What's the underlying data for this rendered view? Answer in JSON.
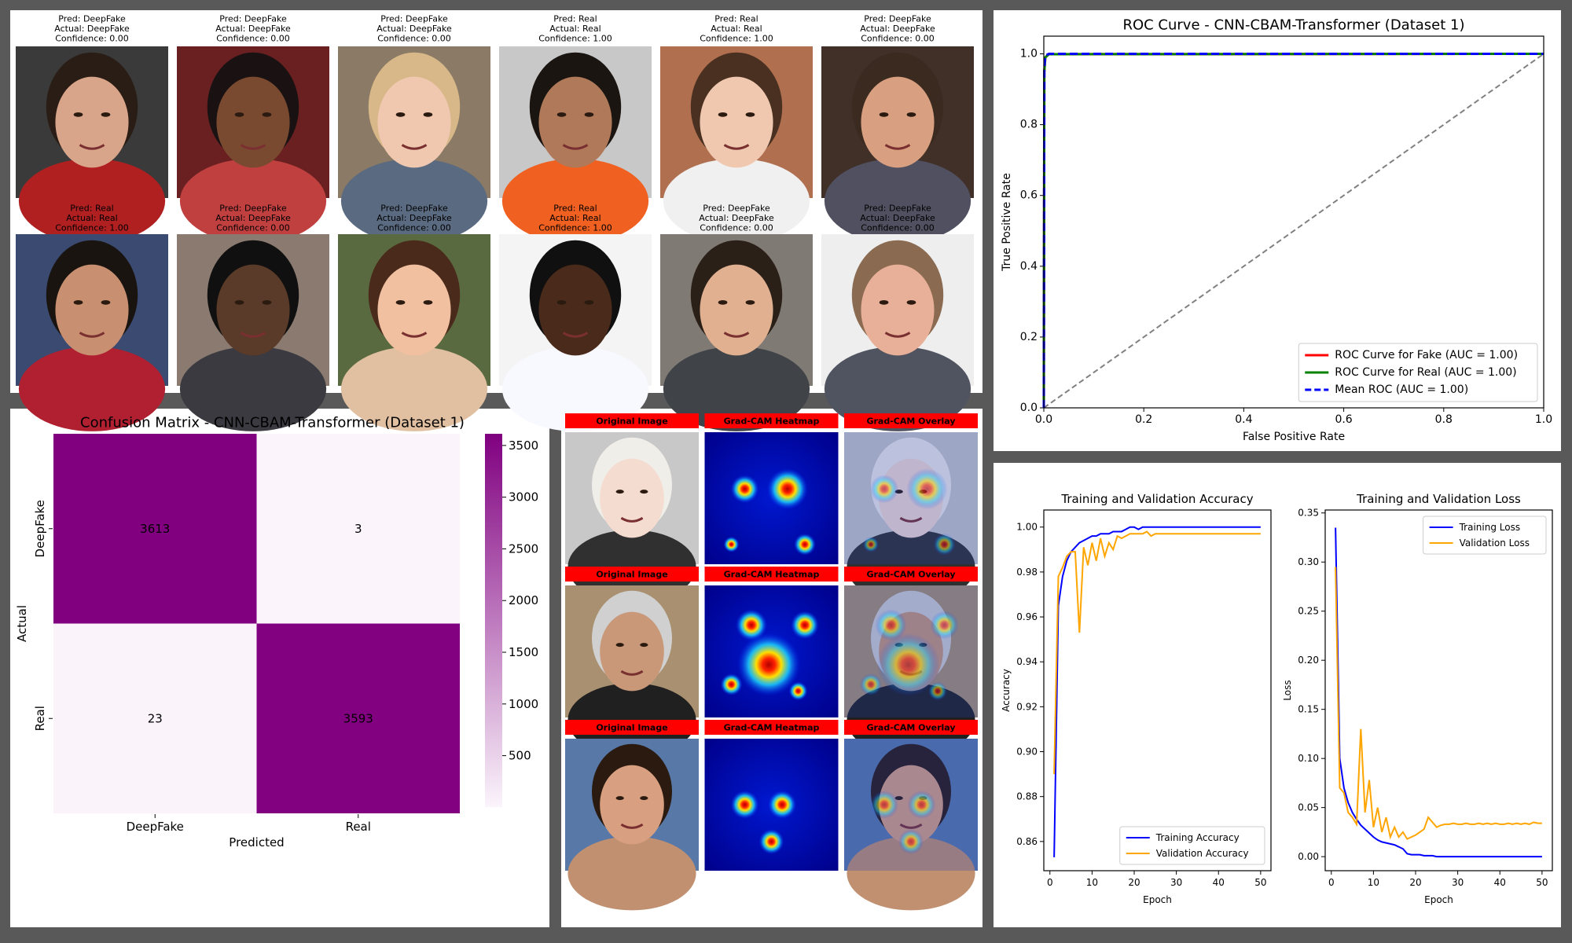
{
  "face_grid": {
    "items": [
      {
        "pred": "Pred: DeepFake",
        "actual": "Actual: DeepFake",
        "confidence": "Confidence: 0.00"
      },
      {
        "pred": "Pred: DeepFake",
        "actual": "Actual: DeepFake",
        "confidence": "Confidence: 0.00"
      },
      {
        "pred": "Pred: DeepFake",
        "actual": "Actual: DeepFake",
        "confidence": "Confidence: 0.00"
      },
      {
        "pred": "Pred: Real",
        "actual": "Actual: Real",
        "confidence": "Confidence: 1.00"
      },
      {
        "pred": "Pred: Real",
        "actual": "Actual: Real",
        "confidence": "Confidence: 1.00"
      },
      {
        "pred": "Pred: DeepFake",
        "actual": "Actual: DeepFake",
        "confidence": "Confidence: 0.00"
      },
      {
        "pred": "Pred: Real",
        "actual": "Actual: Real",
        "confidence": "Confidence: 1.00"
      },
      {
        "pred": "Pred: DeepFake",
        "actual": "Actual: DeepFake",
        "confidence": "Confidence: 0.00"
      },
      {
        "pred": "Pred: DeepFake",
        "actual": "Actual: DeepFake",
        "confidence": "Confidence: 0.00"
      },
      {
        "pred": "Pred: Real",
        "actual": "Actual: Real",
        "confidence": "Confidence: 1.00"
      },
      {
        "pred": "Pred: DeepFake",
        "actual": "Actual: DeepFake",
        "confidence": "Confidence: 0.00"
      },
      {
        "pred": "Pred: DeepFake",
        "actual": "Actual: DeepFake",
        "confidence": "Confidence: 0.00"
      }
    ]
  },
  "gradcam": {
    "rows": [
      {
        "labels": [
          "Original Image",
          "Grad-CAM Heatmap",
          "Grad-CAM Overlay"
        ]
      },
      {
        "labels": [
          "Original Image",
          "Grad-CAM Heatmap",
          "Grad-CAM Overlay"
        ]
      },
      {
        "labels": [
          "Original Image",
          "Grad-CAM Heatmap",
          "Grad-CAM Overlay"
        ]
      }
    ]
  },
  "chart_data": [
    {
      "type": "line",
      "title": "ROC Curve - CNN-CBAM-Transformer (Dataset 1)",
      "xlabel": "False Positive Rate",
      "ylabel": "True Positive Rate",
      "x": [
        0,
        0.001,
        0.003,
        0.01,
        1
      ],
      "series": [
        {
          "name": "ROC Curve for Fake (AUC = 1.00)",
          "color": "#ff0000",
          "values": [
            0,
            0.95,
            0.99,
            0.999,
            1
          ]
        },
        {
          "name": "ROC Curve for Real (AUC = 1.00)",
          "color": "#008000",
          "values": [
            0,
            0.95,
            0.99,
            0.999,
            1
          ]
        },
        {
          "name": "Mean ROC (AUC = 1.00)",
          "color": "#0000ff",
          "dash": true,
          "values": [
            0,
            0.96,
            0.995,
            1,
            1
          ]
        }
      ],
      "xlim": [
        0,
        1
      ],
      "ylim": [
        0,
        1.05
      ],
      "xticks": [
        {
          "value": 0,
          "label": "0.0"
        },
        0.2,
        0.4,
        0.6,
        0.8,
        {
          "value": 1,
          "label": "1.0"
        }
      ],
      "yticks": [
        {
          "value": 0,
          "label": "0.0"
        },
        0.2,
        0.4,
        0.6,
        0.8,
        {
          "value": 1,
          "label": "1.0"
        }
      ],
      "diagonal": true,
      "legend": "lower right"
    },
    {
      "type": "heatmap",
      "title": "Confusion Matrix - CNN-CBAM-Transformer (Dataset 1)",
      "xlabel": "Predicted",
      "ylabel": "Actual",
      "x_categories": [
        "DeepFake",
        "Real"
      ],
      "y_categories": [
        "DeepFake",
        "Real"
      ],
      "values": [
        [
          3613,
          3
        ],
        [
          23,
          3593
        ]
      ],
      "clim": [
        3,
        3613
      ],
      "cticks": [
        500,
        1000,
        1500,
        2000,
        2500,
        3000,
        3500
      ],
      "cmap": [
        "#fbf4fb",
        "#800080"
      ]
    },
    {
      "type": "line",
      "title": "Training and Validation Accuracy",
      "xlabel": "Epoch",
      "ylabel": "Accuracy",
      "x": [
        1,
        2,
        3,
        4,
        5,
        6,
        7,
        8,
        9,
        10,
        11,
        12,
        13,
        14,
        15,
        16,
        17,
        18,
        19,
        20,
        21,
        22,
        23,
        24,
        25,
        26,
        27,
        28,
        29,
        30,
        31,
        32,
        33,
        34,
        35,
        36,
        37,
        38,
        39,
        40,
        41,
        42,
        43,
        44,
        45,
        46,
        47,
        48,
        49,
        50
      ],
      "series": [
        {
          "name": "Training Accuracy",
          "color": "#0000ff",
          "values": [
            0.853,
            0.965,
            0.978,
            0.985,
            0.989,
            0.991,
            0.993,
            0.994,
            0.995,
            0.996,
            0.996,
            0.997,
            0.997,
            0.997,
            0.998,
            0.998,
            0.998,
            0.999,
            1,
            1,
            0.999,
            1,
            1,
            1,
            1,
            1,
            1,
            1,
            1,
            1,
            1,
            1,
            1,
            1,
            1,
            1,
            1,
            1,
            1,
            1,
            1,
            1,
            1,
            1,
            1,
            1,
            1,
            1,
            1,
            1
          ]
        },
        {
          "name": "Validation Accuracy",
          "color": "#ffa500",
          "values": [
            0.89,
            0.978,
            0.982,
            0.987,
            0.989,
            0.989,
            0.953,
            0.991,
            0.983,
            0.993,
            0.985,
            0.995,
            0.987,
            0.993,
            0.99,
            0.996,
            0.995,
            0.996,
            0.997,
            0.997,
            0.997,
            0.997,
            0.998,
            0.996,
            0.997,
            0.997,
            0.997,
            0.997,
            0.997,
            0.997,
            0.997,
            0.997,
            0.997,
            0.997,
            0.997,
            0.997,
            0.997,
            0.997,
            0.997,
            0.997,
            0.997,
            0.997,
            0.997,
            0.997,
            0.997,
            0.997,
            0.997,
            0.997,
            0.997,
            0.997
          ]
        }
      ],
      "xlim": [
        -1.45,
        52.45
      ],
      "ylim": [
        0.847,
        1.0076
      ],
      "xticks": [
        0,
        10,
        20,
        30,
        40,
        50
      ],
      "yticks": [
        0.86,
        0.88,
        {
          "value": 0.9,
          "label": "0.90"
        },
        0.92,
        0.94,
        0.96,
        0.98,
        {
          "value": 1,
          "label": "1.00"
        }
      ],
      "legend": "lower right"
    },
    {
      "type": "line",
      "title": "Training and Validation Loss",
      "xlabel": "Epoch",
      "ylabel": "Loss",
      "x": [
        1,
        2,
        3,
        4,
        5,
        6,
        7,
        8,
        9,
        10,
        11,
        12,
        13,
        14,
        15,
        16,
        17,
        18,
        19,
        20,
        21,
        22,
        23,
        24,
        25,
        26,
        27,
        28,
        29,
        30,
        31,
        32,
        33,
        34,
        35,
        36,
        37,
        38,
        39,
        40,
        41,
        42,
        43,
        44,
        45,
        46,
        47,
        48,
        49,
        50
      ],
      "series": [
        {
          "name": "Training Loss",
          "color": "#0000ff",
          "values": [
            0.335,
            0.1,
            0.07,
            0.055,
            0.045,
            0.038,
            0.032,
            0.028,
            0.024,
            0.02,
            0.017,
            0.015,
            0.014,
            0.013,
            0.012,
            0.01,
            0.008,
            0.003,
            0.002,
            0.002,
            0.002,
            0.001,
            0.001,
            0.001,
            0,
            0,
            0,
            0,
            0,
            0,
            0,
            0,
            0,
            0,
            0,
            0,
            0,
            0,
            0,
            0,
            0,
            0,
            0,
            0,
            0,
            0,
            0,
            0,
            0,
            0
          ]
        },
        {
          "name": "Validation Loss",
          "color": "#ffa500",
          "values": [
            0.295,
            0.07,
            0.065,
            0.045,
            0.04,
            0.033,
            0.13,
            0.045,
            0.078,
            0.03,
            0.05,
            0.025,
            0.04,
            0.02,
            0.03,
            0.02,
            0.025,
            0.018,
            0.02,
            0.022,
            0.025,
            0.028,
            0.04,
            0.035,
            0.03,
            0.032,
            0.033,
            0.033,
            0.034,
            0.033,
            0.033,
            0.034,
            0.033,
            0.033,
            0.034,
            0.033,
            0.034,
            0.033,
            0.034,
            0.033,
            0.033,
            0.034,
            0.033,
            0.034,
            0.033,
            0.034,
            0.033,
            0.035,
            0.034,
            0.034
          ]
        }
      ],
      "xlim": [
        -1.45,
        52.45
      ],
      "ylim": [
        -0.0143,
        0.353
      ],
      "xticks": [
        0,
        10,
        20,
        30,
        40,
        50
      ],
      "yticks": [
        {
          "value": 0,
          "label": "0.00"
        },
        0.05,
        {
          "value": 0.1,
          "label": "0.10"
        },
        0.15,
        {
          "value": 0.2,
          "label": "0.20"
        },
        0.25,
        {
          "value": 0.3,
          "label": "0.30"
        },
        0.35
      ],
      "legend": "upper right"
    }
  ]
}
